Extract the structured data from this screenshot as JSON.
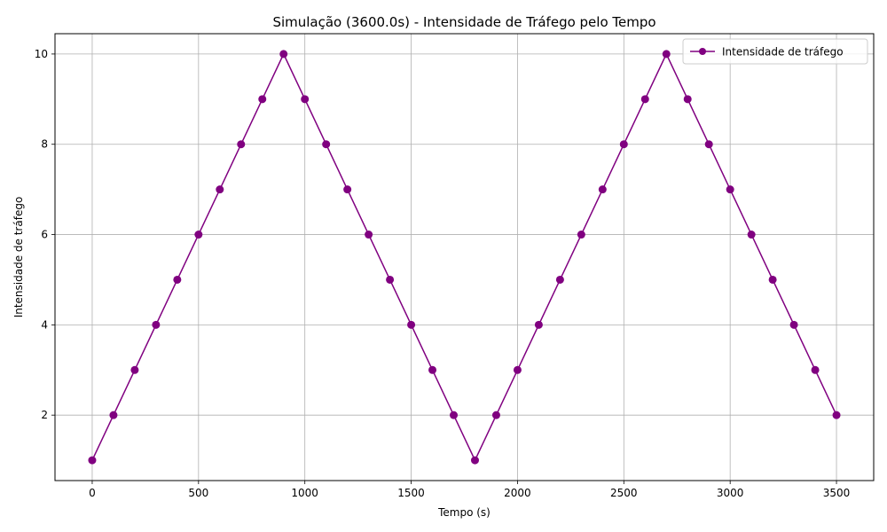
{
  "chart_data": {
    "type": "line",
    "title": "Simulação (3600.0s) - Intensidade de Tráfego pelo Tempo",
    "xlabel": "Tempo (s)",
    "ylabel": "Intensidade de tráfego",
    "xlim": [
      -175,
      3675
    ],
    "ylim": [
      0.55,
      10.45
    ],
    "x_ticks": [
      0,
      500,
      1000,
      1500,
      2000,
      2500,
      3000,
      3500
    ],
    "y_ticks": [
      2,
      4,
      6,
      8,
      10
    ],
    "x_tick_labels": [
      "0",
      "500",
      "1000",
      "1500",
      "2000",
      "2500",
      "3000",
      "3500"
    ],
    "y_tick_labels": [
      "2",
      "4",
      "6",
      "8",
      "10"
    ],
    "grid": true,
    "legend_position": "top-right",
    "series": [
      {
        "name": "Intensidade de tráfego",
        "color": "#800080",
        "marker": "circle",
        "x": [
          0,
          100,
          200,
          300,
          400,
          500,
          600,
          700,
          800,
          900,
          1000,
          1100,
          1200,
          1300,
          1400,
          1500,
          1600,
          1700,
          1800,
          1900,
          2000,
          2100,
          2200,
          2300,
          2400,
          2500,
          2600,
          2700,
          2800,
          2900,
          3000,
          3100,
          3200,
          3300,
          3400,
          3500
        ],
        "values": [
          1,
          2,
          3,
          4,
          5,
          6,
          7,
          8,
          9,
          10,
          9,
          8,
          7,
          6,
          5,
          4,
          3,
          2,
          1,
          2,
          3,
          4,
          5,
          6,
          7,
          8,
          9,
          10,
          9,
          8,
          7,
          6,
          5,
          4,
          3,
          2
        ]
      }
    ]
  }
}
